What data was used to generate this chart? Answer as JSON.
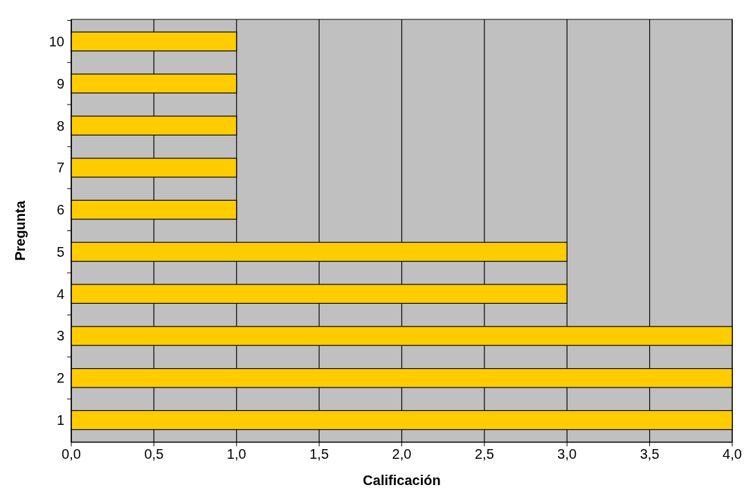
{
  "chart_data": {
    "type": "bar",
    "orientation": "horizontal",
    "xlabel": "Calificación",
    "ylabel": "Pregunta",
    "categories": [
      "10",
      "9",
      "8",
      "7",
      "6",
      "5",
      "4",
      "3",
      "2",
      "1"
    ],
    "values": [
      1,
      1,
      1,
      1,
      1,
      3,
      3,
      4,
      4,
      4
    ],
    "color": "#ffcc00",
    "xlim": [
      0,
      4
    ],
    "xticks": [
      {
        "value": 0,
        "label": "0,0"
      },
      {
        "value": 0.5,
        "label": "0,5"
      },
      {
        "value": 1,
        "label": "1,0"
      },
      {
        "value": 1.5,
        "label": "1,5"
      },
      {
        "value": 2,
        "label": "2,0"
      },
      {
        "value": 2.5,
        "label": "2,5"
      },
      {
        "value": 3,
        "label": "3,0"
      },
      {
        "value": 3.5,
        "label": "3,5"
      },
      {
        "value": 4,
        "label": "4,0"
      }
    ],
    "grid": "x"
  }
}
